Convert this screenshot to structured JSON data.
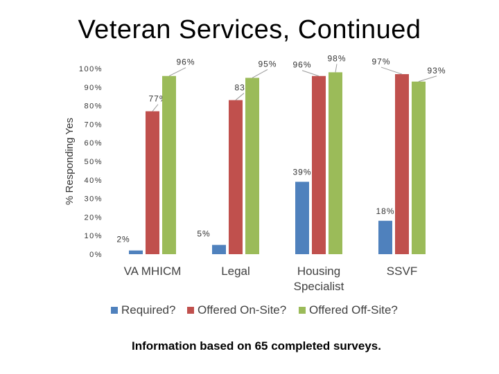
{
  "slide": {
    "title": "Veteran Services, Continued",
    "footnote": "Information based on 65 completed surveys."
  },
  "chart_data": {
    "type": "bar",
    "ylabel": "% Responding Yes",
    "ylim": [
      0,
      100
    ],
    "yticks": [
      "0%",
      "10%",
      "20%",
      "30%",
      "40%",
      "50%",
      "60%",
      "70%",
      "80%",
      "90%",
      "100%"
    ],
    "categories": [
      [
        "VA MHICM"
      ],
      [
        "Legal"
      ],
      [
        "Housing",
        "Specialist"
      ],
      [
        "SSVF"
      ]
    ],
    "series": [
      {
        "name": "Required?",
        "color": "#4f81bd",
        "values": [
          2,
          5,
          39,
          18
        ],
        "labels": [
          "2%",
          "5%",
          "39%",
          "18%"
        ]
      },
      {
        "name": "Offered On-Site?",
        "color": "#c0504d",
        "values": [
          77,
          83,
          96,
          97
        ],
        "labels": [
          "77%",
          "83%",
          "96%",
          "97%"
        ]
      },
      {
        "name": "Offered Off-Site?",
        "color": "#9bbb59",
        "values": [
          96,
          95,
          98,
          93
        ],
        "labels": [
          "96%",
          "95%",
          "98%",
          "93%"
        ]
      }
    ],
    "legend": "bottom",
    "grid": false
  }
}
